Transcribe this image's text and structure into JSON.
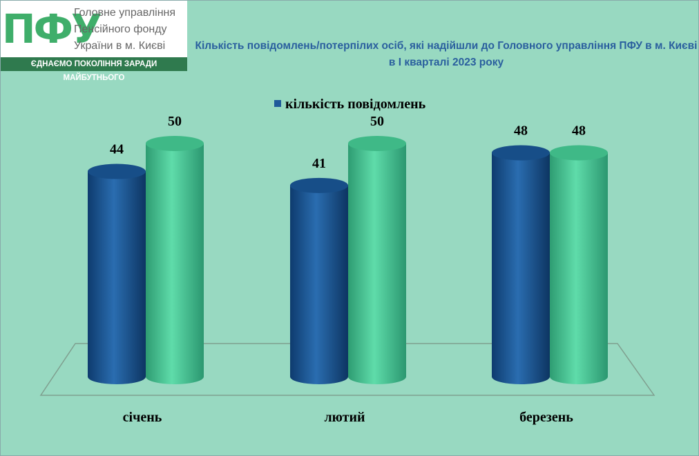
{
  "logo": {
    "mark": "ПФУ",
    "lines": [
      "Головне управління",
      "Пенсійного фонду",
      "України в м. Києві"
    ],
    "slogan": "ЄДНАЄМО ПОКОЛІННЯ ЗАРАДИ МАЙБУТНЬОГО"
  },
  "chart_data": {
    "type": "bar",
    "title": "Кількість повідомлень/потерпілих осіб, які надійшли до Головного управління ПФУ в м. Києві в І кварталі 2023 року",
    "categories": [
      "січень",
      "лютий",
      "березень"
    ],
    "series": [
      {
        "name": "кількість повідомлень",
        "color": "#1f5a9a",
        "values": [
          44,
          41,
          48
        ]
      },
      {
        "color": "#46c896",
        "values": [
          50,
          50,
          48
        ]
      }
    ]
  }
}
